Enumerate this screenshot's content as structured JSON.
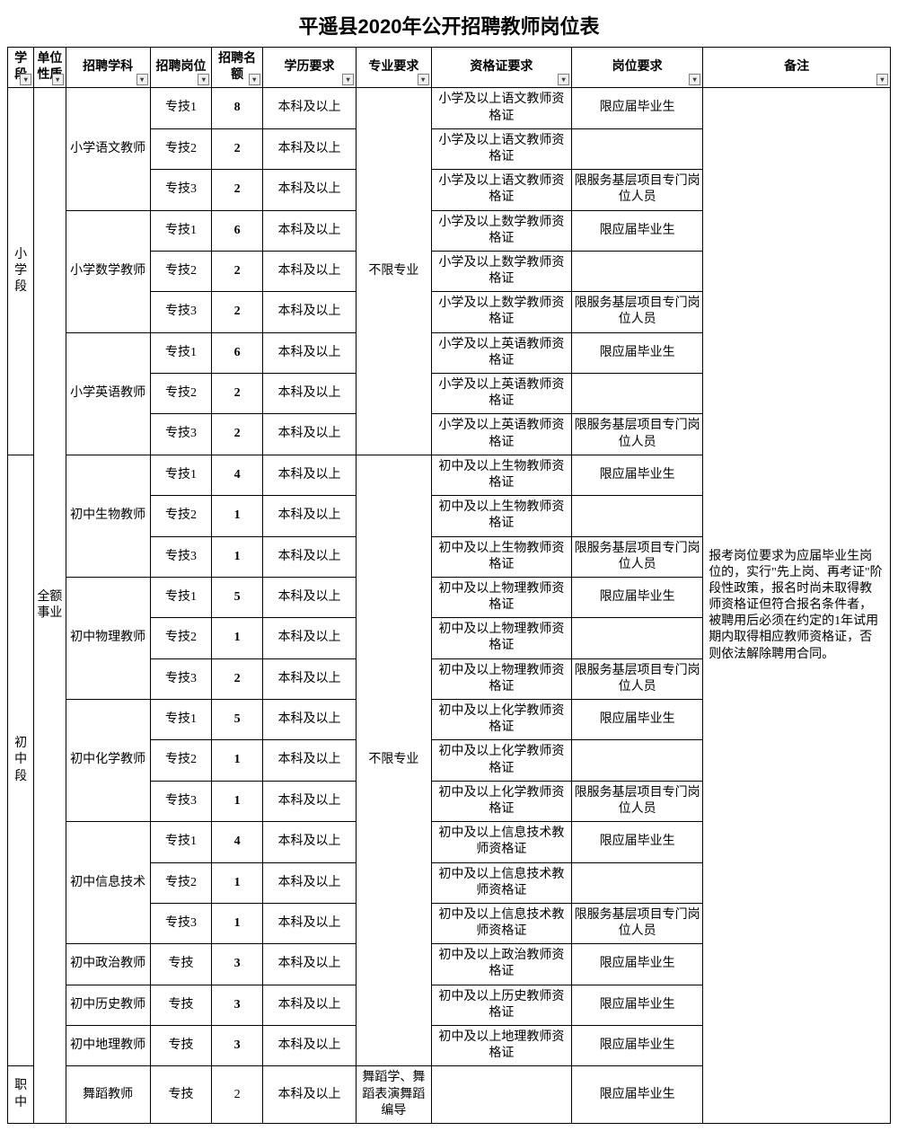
{
  "title": "平遥县2020年公开招聘教师岗位表",
  "headers": {
    "stage": "学段",
    "unit": "单位性质",
    "subject": "招聘学科",
    "post": "招聘岗位",
    "quota": "招聘名额",
    "edu": "学历要求",
    "major": "专业要求",
    "cert": "资格证要求",
    "posreq": "岗位要求",
    "note": "备注"
  },
  "stage": {
    "primary": "小学段",
    "middle": "初中段",
    "voc": "职中"
  },
  "unit_type": "全额事业",
  "major_unlimited": "不限专业",
  "major_dance": "舞蹈学、舞蹈表演舞蹈编导",
  "note_text": "报考岗位要求为应届毕业生岗位的，实行\"先上岗、再考证\"阶段性政策，报名时尚未取得教师资格证但符合报名条件者，被聘用后必须在约定的1年试用期内取得相应教师资格证，否则依法解除聘用合同。",
  "edu_req": "本科及以上",
  "posreq": {
    "fresh": "限应届毕业生",
    "base": "限服务基层项目专门岗位人员",
    "none": ""
  },
  "subjects": {
    "p_chinese": "小学语文教师",
    "p_math": "小学数学教师",
    "p_english": "小学英语教师",
    "m_bio": "初中生物教师",
    "m_phys": "初中物理教师",
    "m_chem": "初中化学教师",
    "m_it": "初中信息技术",
    "m_pol": "初中政治教师",
    "m_his": "初中历史教师",
    "m_geo": "初中地理教师",
    "v_dance": "舞蹈教师"
  },
  "posts": {
    "zj1": "专技1",
    "zj2": "专技2",
    "zj3": "专技3",
    "zj": "专技"
  },
  "quotas": {
    "pc1": "8",
    "pc2": "2",
    "pc3": "2",
    "pm1": "6",
    "pm2": "2",
    "pm3": "2",
    "pe1": "6",
    "pe2": "2",
    "pe3": "2",
    "mb1": "4",
    "mb2": "1",
    "mb3": "1",
    "mp1": "5",
    "mp2": "1",
    "mp3": "2",
    "mc1": "5",
    "mc2": "1",
    "mc3": "1",
    "mi1": "4",
    "mi2": "1",
    "mi3": "1",
    "mpol": "3",
    "mhis": "3",
    "mgeo": "3",
    "vd": "2"
  },
  "certs": {
    "p_chinese": "小学及以上语文教师资格证",
    "p_math": "小学及以上数学教师资格证",
    "p_english": "小学及以上英语教师资格证",
    "m_bio": "初中及以上生物教师资格证",
    "m_phys": "初中及以上物理教师资格证",
    "m_chem": "初中及以上化学教师资格证",
    "m_it": "初中及以上信息技术教师资格证",
    "m_pol": "初中及以上政治教师资格证",
    "m_his": "初中及以上历史教师资格证",
    "m_geo": "初中及以上地理教师资格证"
  }
}
